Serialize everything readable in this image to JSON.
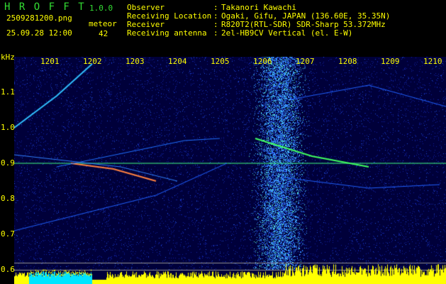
{
  "header": {
    "app_name": "H R O F F T",
    "version": "1.0.0",
    "filename": "2509281200.png",
    "datetime": "25.09.28 12:00",
    "meteor_label": "meteor",
    "meteor_count": "42",
    "info": [
      {
        "label": "Observer",
        "value": "Takanori Kawachi"
      },
      {
        "label": "Receiving Location",
        "value": "Ogaki, Gifu, JAPAN (136.60E, 35.35N)"
      },
      {
        "label": "Receiver",
        "value": "R820T2(RTL-SDR) SDR-Sharp 53.372MHz"
      },
      {
        "label": "Receiving antenna",
        "value": "2el-HB9CV Vertical (el. E-W)"
      }
    ]
  },
  "spectrogram": {
    "y_unit": "kHz",
    "y_ticks": [
      "1.1",
      "1.0",
      "0.9",
      "0.8",
      "0.7",
      "0.6"
    ],
    "x_ticks": [
      "1201",
      "1202",
      "1203",
      "1204",
      "1205",
      "1206",
      "1207",
      "1208",
      "1209",
      "1210"
    ],
    "colors": {
      "text": "#ffff00",
      "title": "#33dd33",
      "level": "#ffff00",
      "level_low": "#00e5ff"
    }
  }
}
